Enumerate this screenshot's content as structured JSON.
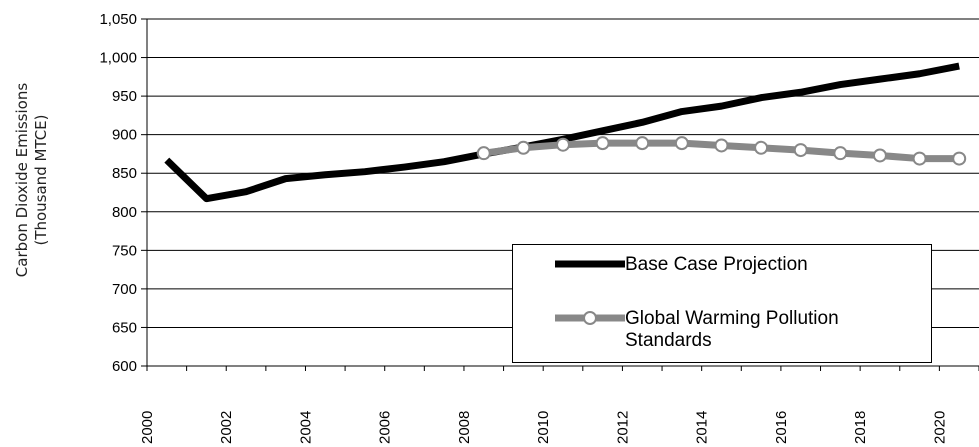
{
  "chart_data": {
    "type": "line",
    "title": "",
    "xlabel": "",
    "ylabel": "Carbon Dioxide Emissions (Thousand MTCE)",
    "ylabel_lines": [
      "Carbon Dioxide Emissions",
      "(Thousand MTCE)"
    ],
    "xlim": [
      2000,
      2021
    ],
    "ylim": [
      600,
      1050
    ],
    "y_ticks": [
      600,
      650,
      700,
      750,
      800,
      850,
      900,
      950,
      1000,
      1050
    ],
    "y_tick_labels": [
      "600",
      "650",
      "700",
      "750",
      "800",
      "850",
      "900",
      "950",
      "1,000",
      "1,050"
    ],
    "x_ticks": [
      2000,
      2002,
      2004,
      2006,
      2008,
      2010,
      2012,
      2014,
      2016,
      2018,
      2020
    ],
    "x_tick_labels": [
      "2000",
      "2002",
      "2004",
      "2006",
      "2008",
      "2010",
      "2012",
      "2014",
      "2016",
      "2018",
      "2020"
    ],
    "grid": "horizontal",
    "legend_position": "bottom-right",
    "series": [
      {
        "name": "Base Case Projection",
        "color": "#000000",
        "marker": "none",
        "x": [
          2000.5,
          2001.5,
          2002.5,
          2003.5,
          2004.5,
          2005.5,
          2006.5,
          2007.5,
          2008.5,
          2009.5,
          2010.5,
          2011.5,
          2012.5,
          2013.5,
          2014.5,
          2015.5,
          2016.5,
          2017.5,
          2018.5,
          2019.5,
          2020.5
        ],
        "values": [
          867,
          817,
          826,
          843,
          848,
          852,
          858,
          865,
          875,
          884,
          894,
          905,
          916,
          930,
          937,
          948,
          955,
          965,
          972,
          979,
          989
        ]
      },
      {
        "name": "Global Warming Pollution Standards",
        "legend_lines": [
          "Global Warming Pollution",
          "Standards"
        ],
        "color": "#888888",
        "marker": "circle",
        "x": [
          2008.5,
          2009.5,
          2010.5,
          2011.5,
          2012.5,
          2013.5,
          2014.5,
          2015.5,
          2016.5,
          2017.5,
          2018.5,
          2019.5,
          2020.5
        ],
        "values": [
          876,
          883,
          887,
          889,
          889,
          889,
          886,
          883,
          880,
          876,
          873,
          869,
          869
        ]
      }
    ]
  }
}
